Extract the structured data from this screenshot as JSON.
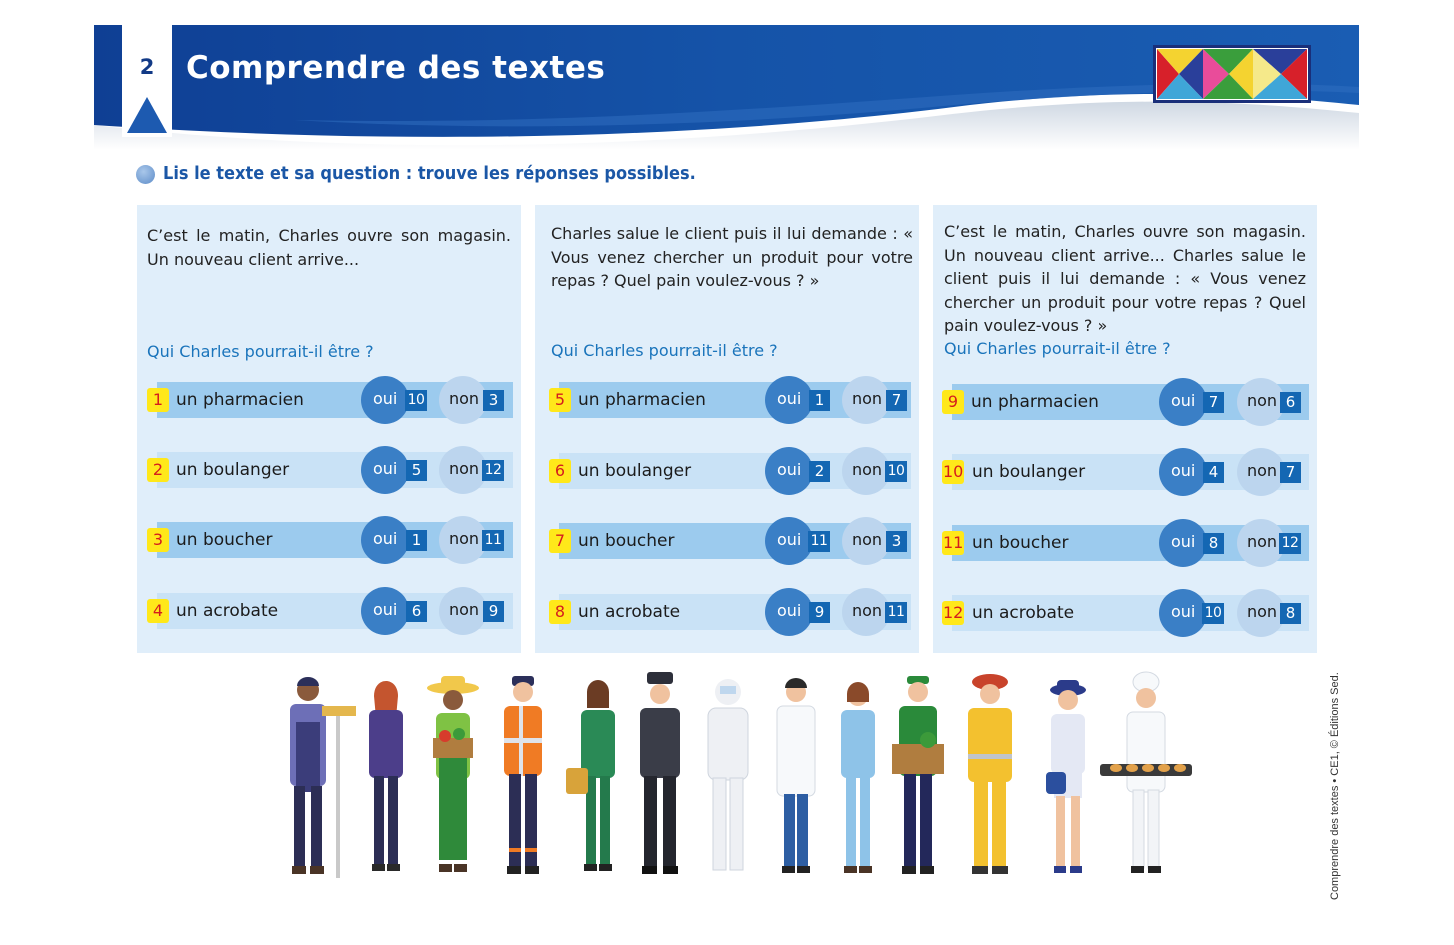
{
  "header": {
    "number": "2",
    "title": "Comprendre des textes"
  },
  "instruction": "Lis le texte et sa question : trouve les réponses possibles.",
  "cards": [
    {
      "text": "C’est le matin, Charles ouvre son magasin. Un nouveau client arrive...",
      "question": "Qui Charles pourrait-il être ?",
      "rows": [
        {
          "num": "1",
          "label": "un pharmacien",
          "oui": "oui",
          "oui_goto": "10",
          "non": "non",
          "non_goto": "3"
        },
        {
          "num": "2",
          "label": "un boulanger",
          "oui": "oui",
          "oui_goto": "5",
          "non": "non",
          "non_goto": "12"
        },
        {
          "num": "3",
          "label": "un boucher",
          "oui": "oui",
          "oui_goto": "1",
          "non": "non",
          "non_goto": "11"
        },
        {
          "num": "4",
          "label": "un acrobate",
          "oui": "oui",
          "oui_goto": "6",
          "non": "non",
          "non_goto": "9"
        }
      ]
    },
    {
      "text": "Charles salue le client puis il lui demande : « Vous venez chercher un produit pour votre repas ? Quel pain voulez-vous ? »",
      "question": "Qui Charles pourrait-il être ?",
      "rows": [
        {
          "num": "5",
          "label": "un pharmacien",
          "oui": "oui",
          "oui_goto": "1",
          "non": "non",
          "non_goto": "7"
        },
        {
          "num": "6",
          "label": "un boulanger",
          "oui": "oui",
          "oui_goto": "2",
          "non": "non",
          "non_goto": "10"
        },
        {
          "num": "7",
          "label": "un boucher",
          "oui": "oui",
          "oui_goto": "11",
          "non": "non",
          "non_goto": "3"
        },
        {
          "num": "8",
          "label": "un acrobate",
          "oui": "oui",
          "oui_goto": "9",
          "non": "non",
          "non_goto": "11"
        }
      ]
    },
    {
      "text": "C’est le matin, Charles ouvre son magasin. Un nouveau client arrive... Charles salue le client puis il lui demande : « Vous venez chercher un produit pour votre repas ? Quel pain voulez-vous ? »",
      "question": "Qui Charles pourrait-il être ?",
      "rows": [
        {
          "num": "9",
          "label": "un pharmacien",
          "oui": "oui",
          "oui_goto": "7",
          "non": "non",
          "non_goto": "6"
        },
        {
          "num": "10",
          "label": "un boulanger",
          "oui": "oui",
          "oui_goto": "4",
          "non": "non",
          "non_goto": "7"
        },
        {
          "num": "11",
          "label": "un boucher",
          "oui": "oui",
          "oui_goto": "8",
          "non": "non",
          "non_goto": "12"
        },
        {
          "num": "12",
          "label": "un acrobate",
          "oui": "oui",
          "oui_goto": "10",
          "non": "non",
          "non_goto": "8"
        }
      ]
    }
  ],
  "copyright": "Comprendre des textes • CE1, © Éditions Sed.",
  "colors": {
    "header_blue": "#1350a5",
    "accent_blue": "#1a74bb",
    "card_bg": "#e0eefa",
    "badge_yellow": "#ffe81a",
    "badge_red": "#d51d1d",
    "goto_blue": "#1467b3"
  },
  "icons": {
    "instruction_bullet": "blue-dot-icon",
    "header_logo": "triangles-logo-icon",
    "illustration": "professions-crowd-illustration"
  }
}
